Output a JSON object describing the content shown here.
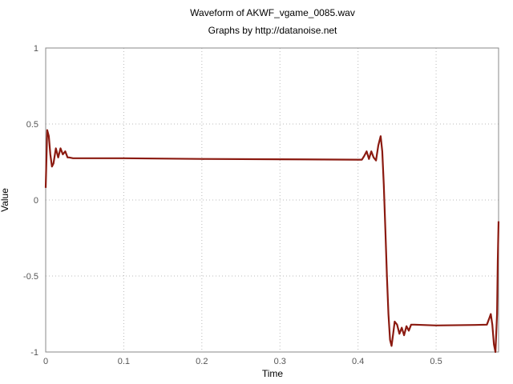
{
  "chart_data": {
    "type": "line",
    "title": "Waveform of AKWF_vgame_0085.wav",
    "subtitle": "Graphs by http://datanoise.net",
    "xlabel": "Time",
    "ylabel": "Value",
    "xlim": [
      0,
      0.58
    ],
    "ylim": [
      -1,
      1
    ],
    "x_ticks": [
      0,
      0.1,
      0.2,
      0.3,
      0.4,
      0.5
    ],
    "x_tick_labels": [
      "0",
      "0.1",
      "0.2",
      "0.3",
      "0.4",
      "0.5"
    ],
    "y_ticks": [
      1,
      0.5,
      0,
      -0.5,
      -1
    ],
    "y_tick_labels": [
      "1",
      "0.5",
      "0",
      "-0.5",
      "-1"
    ],
    "grid": true,
    "line_color": "#8b1a10",
    "series": [
      {
        "x": [
          0,
          0.002,
          0.004,
          0.006,
          0.008,
          0.01,
          0.013,
          0.016,
          0.019,
          0.022,
          0.025,
          0.028,
          0.03,
          0.035,
          0.05,
          0.1,
          0.2,
          0.3,
          0.4,
          0.405,
          0.408,
          0.411,
          0.414,
          0.417,
          0.42,
          0.423,
          0.426,
          0.429,
          0.431,
          0.433,
          0.435,
          0.437,
          0.439,
          0.441,
          0.443,
          0.445,
          0.447,
          0.45,
          0.453,
          0.456,
          0.459,
          0.462,
          0.465,
          0.468,
          0.472,
          0.5,
          0.55,
          0.565,
          0.568,
          0.57,
          0.572,
          0.574,
          0.576,
          0.578,
          0.579,
          0.58
        ],
        "y": [
          0.08,
          0.46,
          0.42,
          0.3,
          0.22,
          0.24,
          0.34,
          0.28,
          0.34,
          0.3,
          0.32,
          0.28,
          0.28,
          0.275,
          0.275,
          0.275,
          0.27,
          0.268,
          0.265,
          0.265,
          0.29,
          0.32,
          0.27,
          0.32,
          0.28,
          0.26,
          0.36,
          0.42,
          0.32,
          0.1,
          -0.2,
          -0.5,
          -0.75,
          -0.92,
          -0.96,
          -0.88,
          -0.8,
          -0.82,
          -0.88,
          -0.84,
          -0.89,
          -0.83,
          -0.86,
          -0.82,
          -0.82,
          -0.825,
          -0.822,
          -0.82,
          -0.78,
          -0.75,
          -0.82,
          -0.95,
          -1.0,
          -0.75,
          -0.4,
          -0.14
        ]
      }
    ]
  }
}
